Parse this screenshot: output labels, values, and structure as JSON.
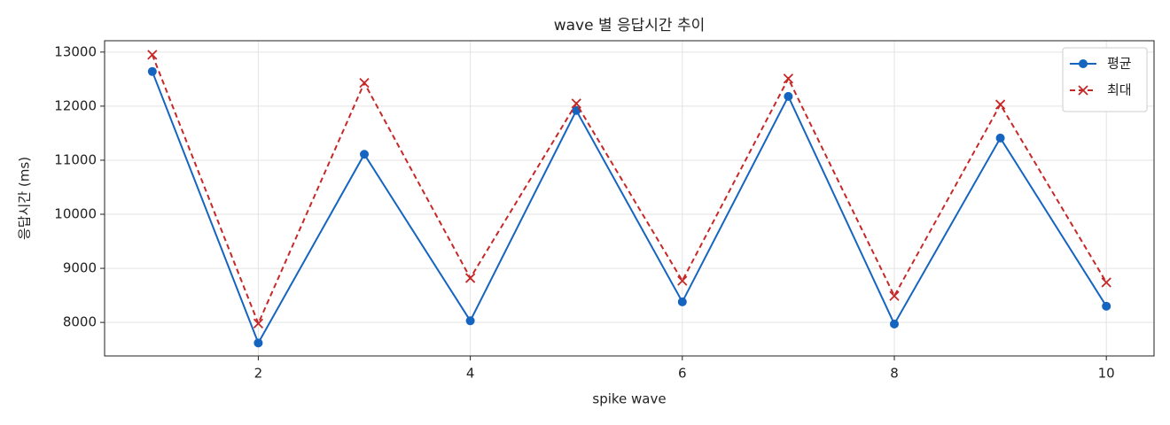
{
  "chart_data": {
    "type": "line",
    "title": "wave 별 응답시간 추이",
    "x_label": "spike wave",
    "y_label": "응답시간 (ms)",
    "x": [
      1,
      2,
      3,
      4,
      5,
      6,
      7,
      8,
      9,
      10
    ],
    "series": [
      {
        "name": "평균",
        "color": "#1565c0",
        "marker": "circle",
        "dash": "solid",
        "values": [
          12640,
          7620,
          11110,
          8030,
          11920,
          8380,
          12180,
          7970,
          11410,
          8300
        ]
      },
      {
        "name": "최대",
        "color": "#c62828",
        "marker": "x",
        "dash": "dashed",
        "values": [
          12950,
          7980,
          12430,
          8820,
          12050,
          8770,
          12510,
          8490,
          12030,
          8740
        ]
      }
    ],
    "xlim": [
      0.55,
      10.45
    ],
    "xticks": [
      2,
      4,
      6,
      8,
      10
    ],
    "ylim": [
      7380,
      13210
    ],
    "yticks": [
      8000,
      9000,
      10000,
      11000,
      12000,
      13000
    ],
    "grid": true,
    "legend": "upper right"
  }
}
